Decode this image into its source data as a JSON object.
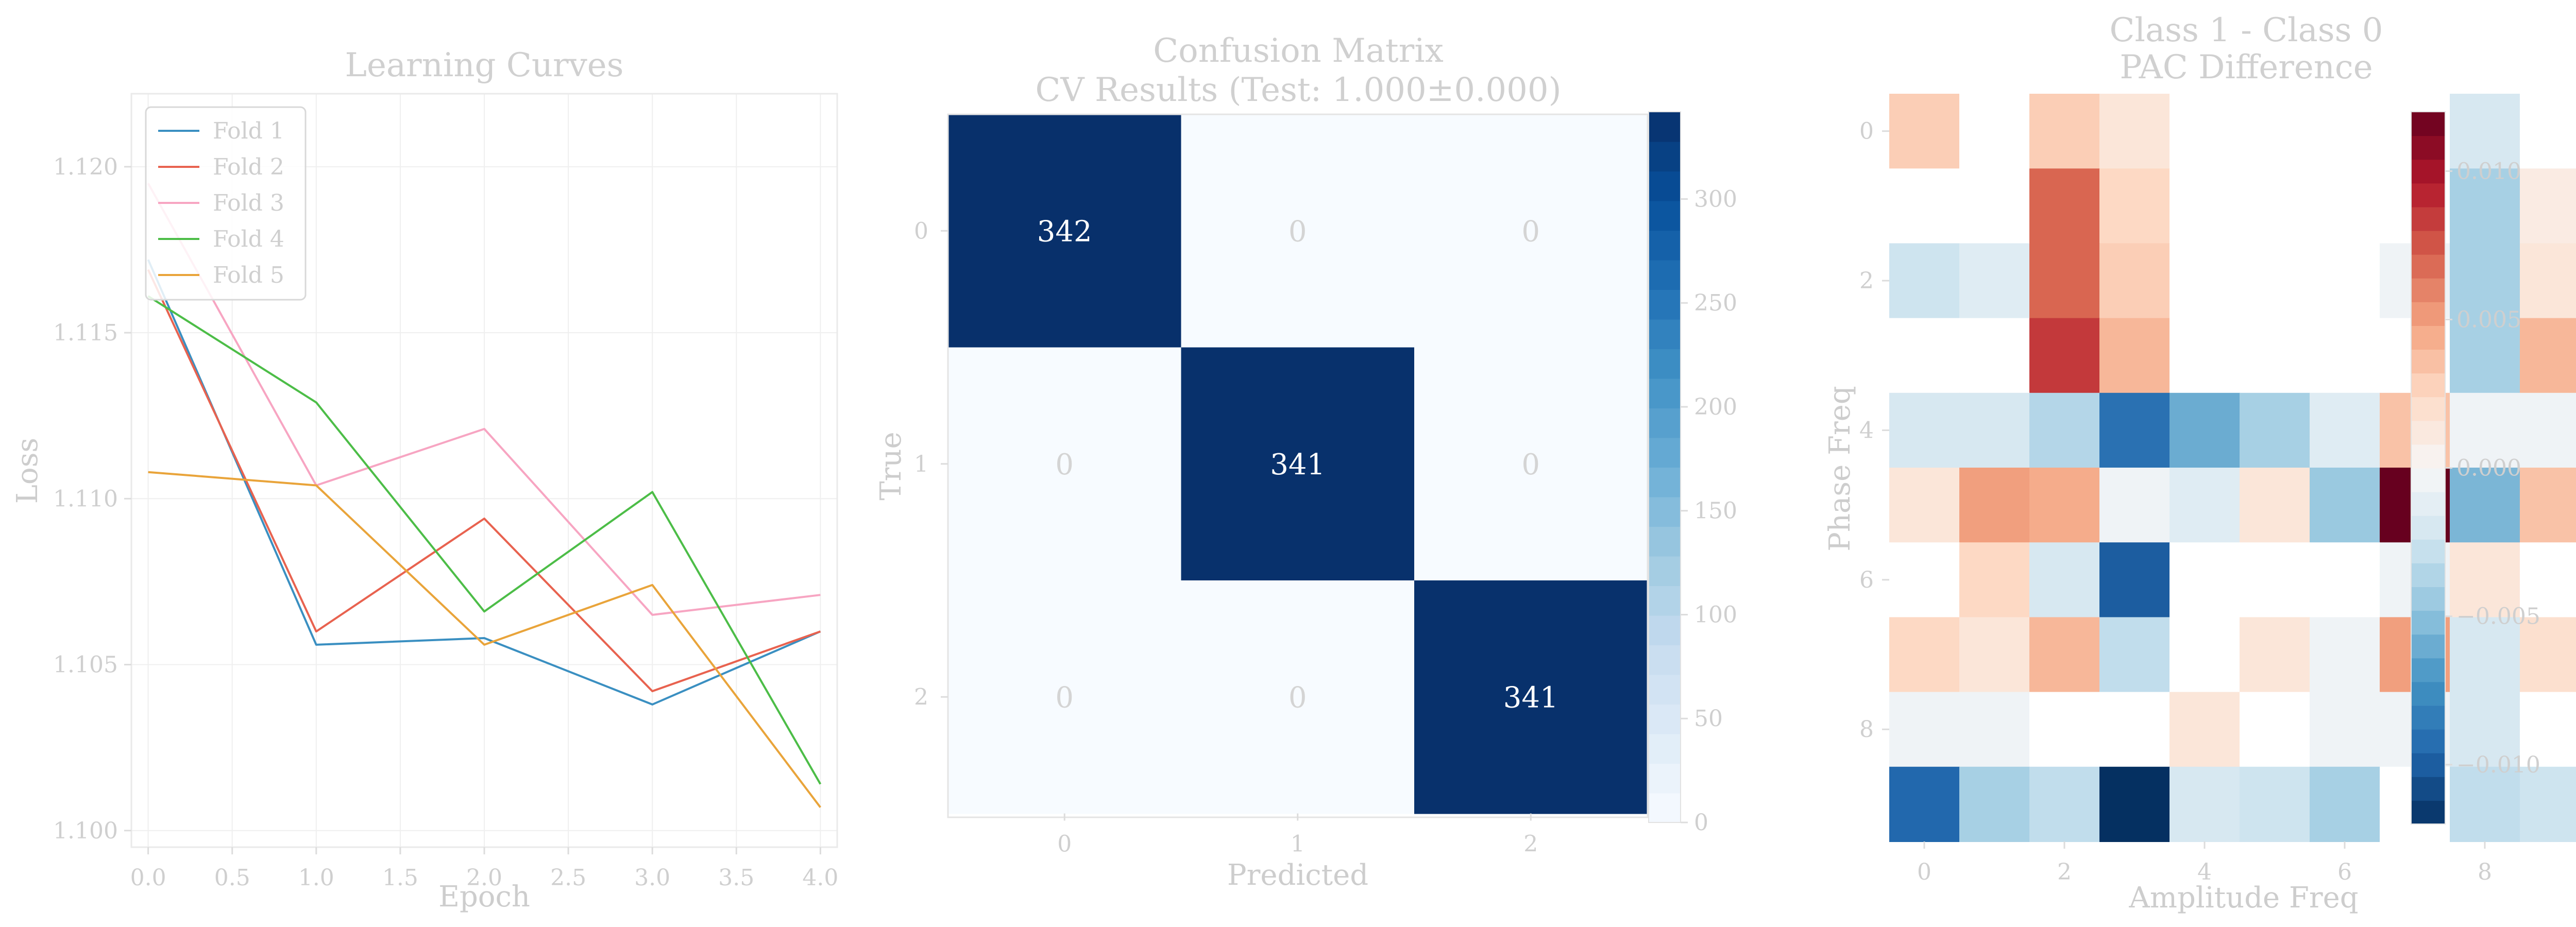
{
  "chart_data": [
    {
      "type": "line",
      "title": "Learning Curves",
      "xlabel": "Epoch",
      "ylabel": "Loss",
      "xlim": [
        -0.1,
        4.1
      ],
      "ylim": [
        1.0995,
        1.1222
      ],
      "xticks": [
        "0.0",
        "0.5",
        "1.0",
        "1.5",
        "2.0",
        "2.5",
        "3.0",
        "3.5",
        "4.0"
      ],
      "xtick_values": [
        0,
        0.5,
        1,
        1.5,
        2,
        2.5,
        3,
        3.5,
        4
      ],
      "yticks": [
        "1.100",
        "1.105",
        "1.110",
        "1.115",
        "1.120"
      ],
      "ytick_values": [
        1.1,
        1.105,
        1.11,
        1.115,
        1.12
      ],
      "grid": true,
      "legend_position": "top-left",
      "x": [
        0,
        1,
        2,
        3,
        4
      ],
      "series": [
        {
          "name": "Fold 1",
          "color": "#3a8fc1",
          "values": [
            1.1172,
            1.1056,
            1.1058,
            1.1038,
            1.106
          ]
        },
        {
          "name": "Fold 2",
          "color": "#e8624f",
          "values": [
            1.1169,
            1.106,
            1.1094,
            1.1042,
            1.106
          ]
        },
        {
          "name": "Fold 3",
          "color": "#f7a5c2",
          "values": [
            1.1195,
            1.1104,
            1.1121,
            1.1065,
            1.1071
          ]
        },
        {
          "name": "Fold 4",
          "color": "#4cbd47",
          "values": [
            1.1161,
            1.1129,
            1.1066,
            1.1102,
            1.1014
          ]
        },
        {
          "name": "Fold 5",
          "color": "#e9a43a",
          "values": [
            1.1108,
            1.1104,
            1.1056,
            1.1074,
            1.1007
          ]
        }
      ]
    },
    {
      "type": "heatmap",
      "title_lines": [
        "Confusion Matrix",
        "CV Results (Test: 1.000±0.000)"
      ],
      "xlabel": "Predicted",
      "ylabel": "True",
      "xticks": [
        "0",
        "1",
        "2"
      ],
      "yticks": [
        "0",
        "1",
        "2"
      ],
      "values": [
        [
          342,
          0,
          0
        ],
        [
          0,
          341,
          0
        ],
        [
          0,
          0,
          341
        ]
      ],
      "colormap": "Blues",
      "colorbar_range": [
        0,
        342
      ],
      "colorbar_ticks": [
        "0",
        "50",
        "100",
        "150",
        "200",
        "250",
        "300"
      ],
      "colorbar_tick_values": [
        0,
        50,
        100,
        150,
        200,
        250,
        300
      ]
    },
    {
      "type": "heatmap",
      "title_lines": [
        "Class 1 - Class 0",
        "PAC Difference"
      ],
      "xlabel": "Amplitude Freq",
      "ylabel": "Phase Freq",
      "xticks": [
        "0",
        "2",
        "4",
        "6",
        "8"
      ],
      "xtick_values": [
        0,
        2,
        4,
        6,
        8
      ],
      "yticks": [
        "0",
        "2",
        "4",
        "6",
        "8"
      ],
      "ytick_values": [
        0,
        2,
        4,
        6,
        8
      ],
      "colormap": "RdBu_r",
      "colorbar_range": [
        -0.012,
        0.012
      ],
      "colorbar_ticks": [
        "0.010",
        "0.005",
        "0.000",
        "−0.005",
        "−0.010"
      ],
      "colorbar_tick_values": [
        0.01,
        0.005,
        0.0,
        -0.005,
        -0.01
      ],
      "values": [
        [
          0.003,
          0.0,
          0.003,
          0.0015,
          0.0,
          0.0,
          0.0,
          0.0,
          -0.002,
          0.0
        ],
        [
          0.0,
          0.0,
          0.007,
          0.0025,
          0.0,
          0.0,
          0.0,
          0.0,
          -0.004,
          0.001
        ],
        [
          -0.0025,
          -0.0015,
          0.007,
          0.003,
          0.0,
          0.0,
          0.0,
          -0.0005,
          -0.004,
          0.0015
        ],
        [
          0.0,
          0.0,
          0.0085,
          0.004,
          0.0,
          0.0,
          0.0,
          0.0,
          -0.004,
          0.004
        ],
        [
          -0.002,
          -0.002,
          -0.0035,
          -0.009,
          -0.006,
          -0.004,
          -0.0015,
          0.0035,
          -0.0005,
          -0.0005
        ],
        [
          0.0015,
          0.005,
          0.0045,
          -0.0005,
          -0.0015,
          0.0015,
          -0.0045,
          0.012,
          -0.0055,
          0.0035
        ],
        [
          0.0,
          0.0025,
          -0.002,
          -0.01,
          0.0,
          0.0,
          0.0,
          -0.0005,
          0.0015,
          0.0
        ],
        [
          0.0025,
          0.0015,
          0.004,
          -0.003,
          0.0,
          0.0015,
          -0.0005,
          0.005,
          -0.002,
          0.002
        ],
        [
          -0.0005,
          -0.0005,
          0.0,
          0.0,
          0.0015,
          0.0,
          -0.0005,
          -0.0005,
          -0.002,
          0.0
        ],
        [
          -0.0095,
          -0.004,
          -0.003,
          -0.012,
          -0.002,
          -0.0025,
          -0.004,
          0.0,
          -0.003,
          -0.0025
        ]
      ]
    }
  ]
}
